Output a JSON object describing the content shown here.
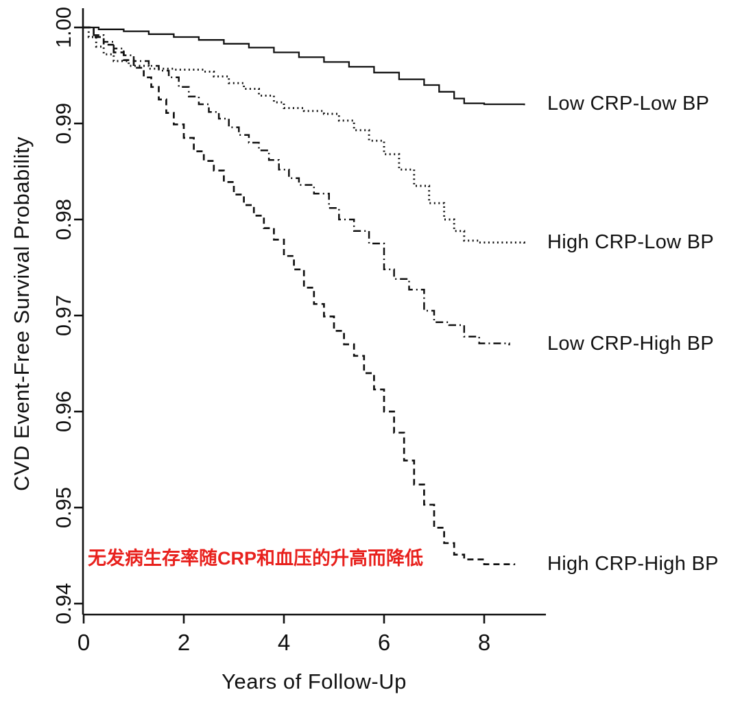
{
  "annotation": {
    "text": "无发病生存率随CRP和血压的升高而降低",
    "color": "#e8211d"
  },
  "chart_data": {
    "type": "line",
    "subtype": "kaplan-meier-step",
    "title": "",
    "xlabel": "Years of Follow-Up",
    "ylabel": "CVD Event-Free Survival Probability",
    "xlim": [
      0,
      9.2
    ],
    "ylim": [
      0.938,
      1.002
    ],
    "xticks": [
      0,
      2,
      4,
      6,
      8
    ],
    "xtick_labels": [
      "0",
      "2",
      "4",
      "6",
      "8"
    ],
    "yticks": [
      0.94,
      0.95,
      0.96,
      0.97,
      0.98,
      0.99,
      1.0
    ],
    "ytick_labels": [
      "0.94",
      "0.95",
      "0.96",
      "0.97",
      "0.98",
      "0.99",
      "1.00"
    ],
    "grid": false,
    "legend_position": "right-of-curve-ends",
    "line_color": "#111111",
    "series": [
      {
        "name": "Low CRP-Low BP",
        "style": "solid",
        "points": [
          [
            0,
            1.0
          ],
          [
            0.3,
            0.9998
          ],
          [
            0.8,
            0.9996
          ],
          [
            1.3,
            0.9993
          ],
          [
            1.8,
            0.999
          ],
          [
            2.3,
            0.9987
          ],
          [
            2.8,
            0.9983
          ],
          [
            3.3,
            0.9979
          ],
          [
            3.8,
            0.9974
          ],
          [
            4.3,
            0.9969
          ],
          [
            4.8,
            0.9964
          ],
          [
            5.3,
            0.9959
          ],
          [
            5.8,
            0.9953
          ],
          [
            6.3,
            0.9946
          ],
          [
            6.8,
            0.994
          ],
          [
            7.1,
            0.9933
          ],
          [
            7.4,
            0.9926
          ],
          [
            7.6,
            0.9921
          ],
          [
            8.0,
            0.992
          ],
          [
            8.8,
            0.9919
          ]
        ]
      },
      {
        "name": "High CRP-Low BP",
        "style": "dotted",
        "points": [
          [
            0,
            1.0
          ],
          [
            0.1,
            0.999
          ],
          [
            0.25,
            0.998
          ],
          [
            0.4,
            0.9972
          ],
          [
            0.6,
            0.9965
          ],
          [
            0.9,
            0.996
          ],
          [
            1.3,
            0.9957
          ],
          [
            1.8,
            0.9956
          ],
          [
            2.4,
            0.9954
          ],
          [
            2.6,
            0.9949
          ],
          [
            2.9,
            0.9942
          ],
          [
            3.2,
            0.9936
          ],
          [
            3.5,
            0.9929
          ],
          [
            3.8,
            0.9922
          ],
          [
            4.0,
            0.9916
          ],
          [
            4.4,
            0.9913
          ],
          [
            4.8,
            0.991
          ],
          [
            5.1,
            0.9903
          ],
          [
            5.4,
            0.9893
          ],
          [
            5.7,
            0.9882
          ],
          [
            6.0,
            0.9868
          ],
          [
            6.3,
            0.9852
          ],
          [
            6.6,
            0.9835
          ],
          [
            6.9,
            0.9817
          ],
          [
            7.2,
            0.98
          ],
          [
            7.4,
            0.9788
          ],
          [
            7.6,
            0.9778
          ],
          [
            7.9,
            0.9776
          ],
          [
            8.8,
            0.9775
          ]
        ]
      },
      {
        "name": "Low CRP-High BP",
        "style": "dashdot",
        "points": [
          [
            0,
            1.0
          ],
          [
            0.2,
            0.9992
          ],
          [
            0.4,
            0.9985
          ],
          [
            0.6,
            0.9978
          ],
          [
            0.8,
            0.9971
          ],
          [
            1.0,
            0.9965
          ],
          [
            1.3,
            0.996
          ],
          [
            1.5,
            0.9955
          ],
          [
            1.7,
            0.9948
          ],
          [
            1.9,
            0.9938
          ],
          [
            2.1,
            0.9928
          ],
          [
            2.3,
            0.992
          ],
          [
            2.5,
            0.9912
          ],
          [
            2.7,
            0.9905
          ],
          [
            2.9,
            0.9896
          ],
          [
            3.1,
            0.9888
          ],
          [
            3.3,
            0.988
          ],
          [
            3.5,
            0.9872
          ],
          [
            3.7,
            0.9862
          ],
          [
            3.9,
            0.9852
          ],
          [
            4.1,
            0.9843
          ],
          [
            4.3,
            0.9836
          ],
          [
            4.6,
            0.9827
          ],
          [
            4.9,
            0.9812
          ],
          [
            5.1,
            0.98
          ],
          [
            5.4,
            0.9788
          ],
          [
            5.7,
            0.9775
          ],
          [
            6.0,
            0.9748
          ],
          [
            6.2,
            0.9738
          ],
          [
            6.5,
            0.9727
          ],
          [
            6.8,
            0.9705
          ],
          [
            7.0,
            0.9693
          ],
          [
            7.3,
            0.969
          ],
          [
            7.6,
            0.9678
          ],
          [
            7.9,
            0.9671
          ],
          [
            8.5,
            0.9669
          ]
        ]
      },
      {
        "name": "High CRP-High BP",
        "style": "dashed",
        "points": [
          [
            0,
            1.0
          ],
          [
            0.2,
            0.999
          ],
          [
            0.4,
            0.9982
          ],
          [
            0.6,
            0.9974
          ],
          [
            0.8,
            0.9966
          ],
          [
            1.0,
            0.9958
          ],
          [
            1.2,
            0.9948
          ],
          [
            1.35,
            0.9938
          ],
          [
            1.5,
            0.9925
          ],
          [
            1.65,
            0.9911
          ],
          [
            1.8,
            0.9899
          ],
          [
            2.0,
            0.9885
          ],
          [
            2.2,
            0.9871
          ],
          [
            2.4,
            0.9861
          ],
          [
            2.6,
            0.9851
          ],
          [
            2.8,
            0.9839
          ],
          [
            3.0,
            0.9826
          ],
          [
            3.2,
            0.9815
          ],
          [
            3.4,
            0.9804
          ],
          [
            3.6,
            0.9791
          ],
          [
            3.8,
            0.9779
          ],
          [
            4.0,
            0.9762
          ],
          [
            4.2,
            0.9748
          ],
          [
            4.4,
            0.9729
          ],
          [
            4.6,
            0.9712
          ],
          [
            4.8,
            0.9699
          ],
          [
            5.0,
            0.9684
          ],
          [
            5.2,
            0.967
          ],
          [
            5.4,
            0.9658
          ],
          [
            5.6,
            0.964
          ],
          [
            5.8,
            0.9623
          ],
          [
            6.0,
            0.96
          ],
          [
            6.2,
            0.9578
          ],
          [
            6.4,
            0.9549
          ],
          [
            6.6,
            0.9524
          ],
          [
            6.8,
            0.9503
          ],
          [
            7.0,
            0.9479
          ],
          [
            7.2,
            0.9463
          ],
          [
            7.4,
            0.9451
          ],
          [
            7.6,
            0.9446
          ],
          [
            8.0,
            0.9441
          ],
          [
            8.6,
            0.944
          ]
        ]
      }
    ]
  }
}
